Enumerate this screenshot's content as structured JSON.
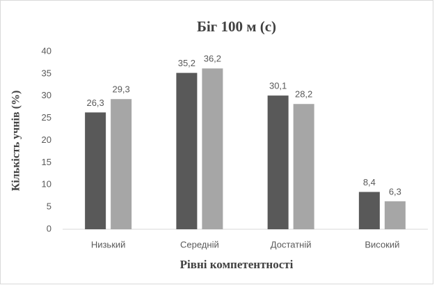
{
  "chart_data": {
    "type": "bar",
    "title": "Біг 100 м (с)",
    "x_label": "Рівні компетентності",
    "y_label": "Кількість учнів (%)",
    "categories": [
      "Низький",
      "Середній",
      "Достатній",
      "Високий"
    ],
    "series": [
      {
        "color": "#595959",
        "values": [
          26.3,
          35.2,
          30.1,
          8.4
        ],
        "value_labels": [
          "26,3",
          "35,2",
          "30,1",
          "8,4"
        ]
      },
      {
        "color": "#a6a6a6",
        "values": [
          29.3,
          36.2,
          28.2,
          6.3
        ],
        "value_labels": [
          "29,3",
          "36,2",
          "28,2",
          "6,3"
        ]
      }
    ],
    "ylim": [
      0,
      40
    ],
    "yticks": [
      0,
      5,
      10,
      15,
      20,
      25,
      30,
      35,
      40
    ],
    "grid": false
  }
}
